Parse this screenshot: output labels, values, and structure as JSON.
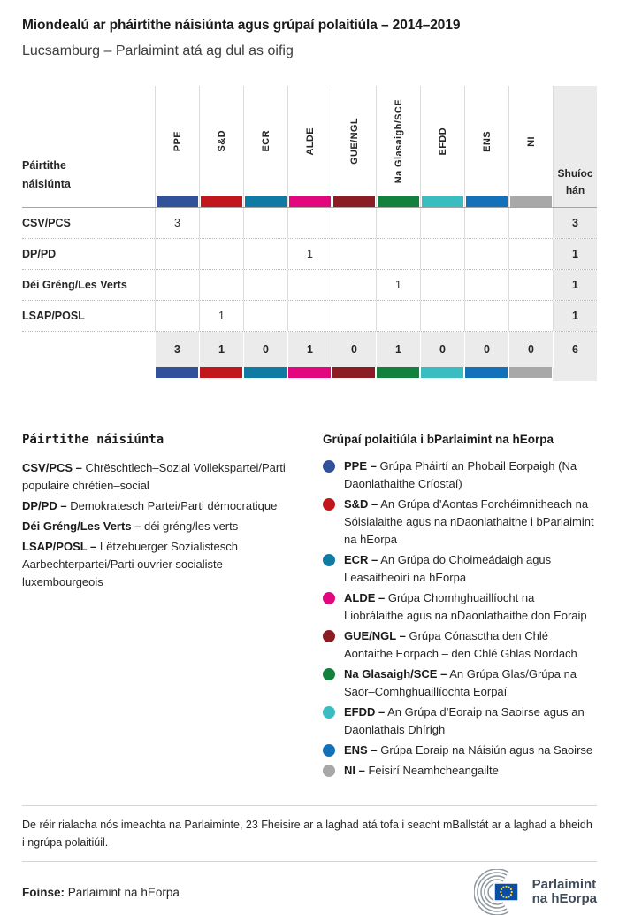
{
  "title": "Miondealú ar pháirtithe náisiúnta agus grúpaí polaitiúla – 2014–2019",
  "subtitle": "Lucsamburg – Parlaimint atá ag dul as oifig",
  "table": {
    "row_header_label": "Páirtithe náisiúnta",
    "seats_label": "Shuíochán",
    "groups": [
      {
        "code": "PPE",
        "color": "#31519b"
      },
      {
        "code": "S&D",
        "color": "#c2161d"
      },
      {
        "code": "ECR",
        "color": "#0f7ba5"
      },
      {
        "code": "ALDE",
        "color": "#e2067f"
      },
      {
        "code": "GUE/NGL",
        "color": "#8c1c24"
      },
      {
        "code": "Na Glasaigh/SCE",
        "color": "#12813d"
      },
      {
        "code": "EFDD",
        "color": "#39bdc1"
      },
      {
        "code": "ENS",
        "color": "#1371b9"
      },
      {
        "code": "NI",
        "color": "#a8a8a8"
      }
    ],
    "rows": [
      {
        "party": "CSV/PCS",
        "values": [
          "3",
          "",
          "",
          "",
          "",
          "",
          "",
          "",
          ""
        ],
        "total": "3"
      },
      {
        "party": "DP/PD",
        "values": [
          "",
          "",
          "",
          "1",
          "",
          "",
          "",
          "",
          ""
        ],
        "total": "1"
      },
      {
        "party": "Déi Gréng/Les Verts",
        "values": [
          "",
          "",
          "",
          "",
          "",
          "1",
          "",
          "",
          ""
        ],
        "total": "1"
      },
      {
        "party": "LSAP/POSL",
        "values": [
          "",
          "1",
          "",
          "",
          "",
          "",
          "",
          "",
          ""
        ],
        "total": "1"
      }
    ],
    "totals": {
      "values": [
        "3",
        "1",
        "0",
        "1",
        "0",
        "1",
        "0",
        "0",
        "0"
      ],
      "total": "6"
    }
  },
  "legend_parties": {
    "heading": "Páirtithe náisiúnta",
    "items": [
      {
        "name": "CSV/PCS –",
        "description": "Chrëschtlech–Sozial Vollekspartei/Parti populaire chrétien–social"
      },
      {
        "name": "DP/PD –",
        "description": "Demokratesch Partei/Parti démocratique"
      },
      {
        "name": "Déi Gréng/Les Verts –",
        "description": "déi gréng/les verts"
      },
      {
        "name": "LSAP/POSL –",
        "description": "Lëtzebuerger Sozialistesch Aarbechterpartei/Parti ouvrier socialiste luxembourgeois"
      }
    ]
  },
  "legend_groups": {
    "heading": "Grúpaí polaitiúla i bParlaimint na hEorpa",
    "items": [
      {
        "code": "PPE –",
        "description": "Grúpa Pháirtí an Phobail Eorpaigh (Na Daonlathaithe Críostaí)",
        "color": "#31519b"
      },
      {
        "code": "S&D –",
        "description": "An Grúpa d’Aontas Forchéimnitheach na Sóisialaithe agus na nDaonlathaithe i bParlaimint na hEorpa",
        "color": "#c2161d"
      },
      {
        "code": "ECR –",
        "description": "An Grúpa do Choimeádaigh agus Leasaitheoirí na hEorpa",
        "color": "#0f7ba5"
      },
      {
        "code": "ALDE –",
        "description": "Grúpa Chomhghuaillíocht na Liobrálaithe agus na nDaonlathaithe don Eoraip",
        "color": "#e2067f"
      },
      {
        "code": "GUE/NGL –",
        "description": "Grúpa Cónasctha den Chlé Aontaithe Eorpach – den Chlé Ghlas Nordach",
        "color": "#8c1c24"
      },
      {
        "code": "Na Glasaigh/SCE –",
        "description": "An Grúpa Glas/Grúpa na Saor–Comhghuaillíochta Eorpaí",
        "color": "#12813d"
      },
      {
        "code": "EFDD –",
        "description": "An Grúpa d’Eoraip na Saoirse agus an Daonlathais Dhírigh",
        "color": "#39bdc1"
      },
      {
        "code": "ENS –",
        "description": "Grúpa Eoraip na Náisiún agus na Saoirse",
        "color": "#1371b9"
      },
      {
        "code": "NI –",
        "description": "Feisirí Neamhcheangailte",
        "color": "#a8a8a8"
      }
    ]
  },
  "footnote": "De réir rialacha nós imeachta na Parlaiminte, 23 Fheisire ar a laghad atá tofa i seacht mBallstát ar a laghad a bheidh i ngrúpa polaitiúil.",
  "source": {
    "label": "Foinse:",
    "value": "Parlaimint na hEorpa"
  },
  "logo": {
    "line1": "Parlaimint",
    "line2": "na hEorpa"
  },
  "colors": {
    "seats_column_bg": "#ebebeb",
    "grid_line": "#dcdcdc",
    "header_rule": "#a6a6a6",
    "logo_text": "#3e4c59",
    "flag_blue": "#0a4da3",
    "flag_star_yellow": "#ffd617"
  },
  "chart_data": {
    "type": "table",
    "title": "Miondealú ar pháirtithe náisiúnta agus grúpaí polaitiúla – 2014–2019",
    "subtitle": "Lucsamburg – Parlaimint atá ag dul as oifig",
    "columns": [
      "PPE",
      "S&D",
      "ECR",
      "ALDE",
      "GUE/NGL",
      "Na Glasaigh/SCE",
      "EFDD",
      "ENS",
      "NI",
      "Shuíochán"
    ],
    "rows": [
      {
        "label": "CSV/PCS",
        "values": [
          3,
          null,
          null,
          null,
          null,
          null,
          null,
          null,
          null
        ],
        "total": 3
      },
      {
        "label": "DP/PD",
        "values": [
          null,
          null,
          null,
          1,
          null,
          null,
          null,
          null,
          null
        ],
        "total": 1
      },
      {
        "label": "Déi Gréng/Les Verts",
        "values": [
          null,
          null,
          null,
          null,
          null,
          1,
          null,
          null,
          null
        ],
        "total": 1
      },
      {
        "label": "LSAP/POSL",
        "values": [
          null,
          1,
          null,
          null,
          null,
          null,
          null,
          null,
          null
        ],
        "total": 1
      }
    ],
    "column_totals": [
      3,
      1,
      0,
      1,
      0,
      1,
      0,
      0,
      0
    ],
    "grand_total": 6
  }
}
